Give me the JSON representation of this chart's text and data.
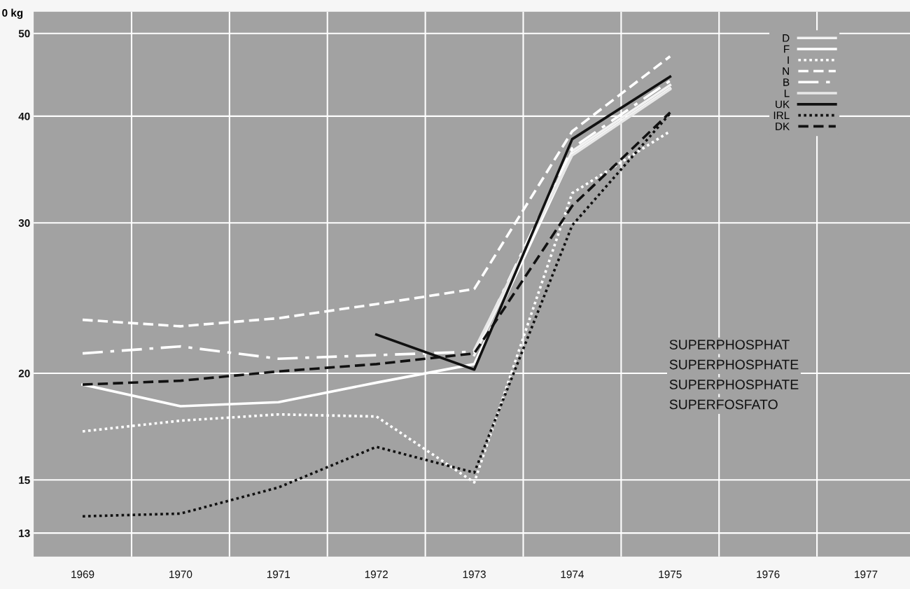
{
  "chart_data": {
    "type": "line",
    "ylabel": "0 kg",
    "x": [
      1969,
      1970,
      1971,
      1972,
      1973,
      1974,
      1975
    ],
    "series": [
      {
        "name": "D",
        "color": "#f2f2f2",
        "line_style": "solid",
        "values": [
          null,
          null,
          null,
          null,
          21.0,
          36.4,
          43.5
        ]
      },
      {
        "name": "F",
        "color": "#ffffff",
        "line_style": "solid",
        "values": [
          19.4,
          18.3,
          18.5,
          19.5,
          20.5,
          36.1,
          43.1
        ]
      },
      {
        "name": "I",
        "color": "#ffffff",
        "line_style": "dotted",
        "values": [
          17.1,
          17.6,
          17.9,
          17.8,
          14.9,
          32.5,
          38.4
        ]
      },
      {
        "name": "N",
        "color": "#ffffff",
        "line_style": "dashed",
        "values": [
          23.1,
          22.7,
          23.2,
          24.1,
          25.1,
          38.4,
          47.0
        ]
      },
      {
        "name": "B",
        "color": "#ffffff",
        "line_style": "dashdot",
        "values": [
          21.1,
          21.5,
          20.8,
          21.0,
          21.2,
          36.7,
          44.0
        ]
      },
      {
        "name": "L",
        "color": "#e8e8e8",
        "line_style": "solid",
        "values": [
          null,
          null,
          null,
          null,
          21.3,
          36.0,
          43.0
        ]
      },
      {
        "name": "UK",
        "color": "#111111",
        "line_style": "solid",
        "values": [
          null,
          null,
          null,
          22.2,
          20.2,
          37.6,
          44.5
        ]
      },
      {
        "name": "IRL",
        "color": "#111111",
        "line_style": "dotted",
        "values": [
          13.6,
          13.7,
          14.7,
          16.4,
          15.3,
          29.8,
          40.3
        ]
      },
      {
        "name": "DK",
        "color": "#111111",
        "line_style": "dashed",
        "values": [
          19.4,
          19.6,
          20.1,
          20.5,
          21.1,
          31.4,
          40.4
        ]
      }
    ],
    "log": "y",
    "xlim": [
      1968.5,
      1977.45
    ],
    "xticks": [
      1969,
      1970,
      1971,
      1972,
      1973,
      1974,
      1975,
      1976,
      1977,
      {
        "value": 1969.5,
        "label": null
      },
      {
        "value": 1970.5,
        "label": null
      },
      {
        "value": 1971.5,
        "label": null
      },
      {
        "value": 1972.5,
        "label": null
      },
      {
        "value": 1973.5,
        "label": null
      },
      {
        "value": 1974.5,
        "label": null
      },
      {
        "value": 1975.5,
        "label": null
      },
      {
        "value": 1976.5,
        "label": null
      }
    ],
    "ylim": [
      12.2,
      53
    ],
    "yticks": [
      13,
      15,
      20,
      30,
      40,
      50
    ],
    "grid": true,
    "legend": "top right",
    "annotations": [
      "SUPERPHOSPHAT",
      "SUPERPHOSPHATE",
      "SUPERPHOSPHATE",
      "SUPERFOSFATO"
    ]
  }
}
